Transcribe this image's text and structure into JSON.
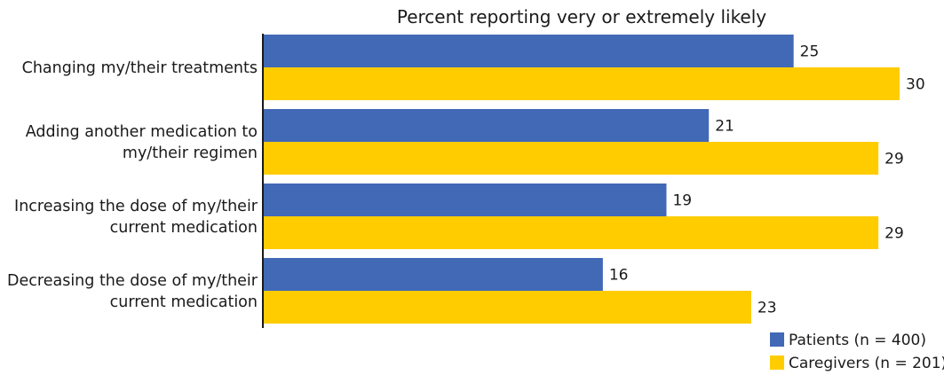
{
  "chart_data": {
    "type": "bar",
    "orientation": "horizontal",
    "title": "Percent reporting very or extremely likely",
    "categories": [
      [
        "Changing my/their treatments"
      ],
      [
        "Adding another medication to",
        "my/their regimen"
      ],
      [
        "Increasing the dose of my/their",
        "current medication"
      ],
      [
        "Decreasing the dose of my/their",
        "current medication"
      ]
    ],
    "series": [
      {
        "name": "Patients (n = 400)",
        "color": "#4169b6",
        "values": [
          25,
          21,
          19,
          16
        ]
      },
      {
        "name": "Caregivers (n = 201)",
        "color": "#ffcc00",
        "values": [
          30,
          29,
          29,
          23
        ]
      }
    ],
    "xlim": [
      0,
      30
    ],
    "grid": false,
    "legend_position": "bottom-right"
  }
}
